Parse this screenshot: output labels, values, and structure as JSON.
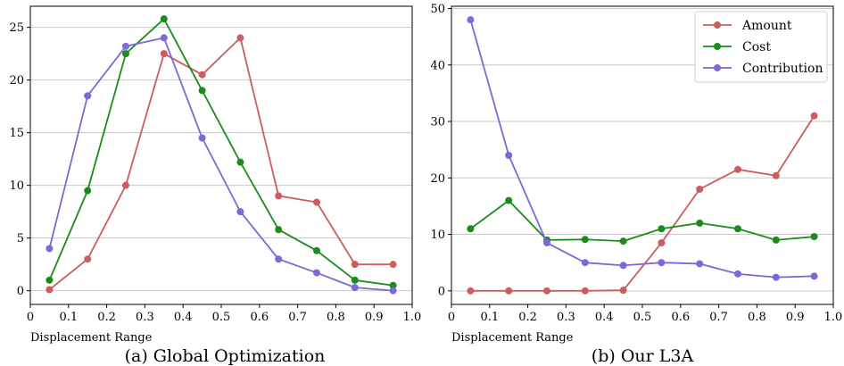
{
  "chart_data": [
    {
      "type": "line",
      "title": "",
      "caption": "(a) Global Optimization",
      "xlabel": "Displacement Range",
      "ylabel": "",
      "xlim": [
        0.0,
        1.0
      ],
      "ylim": [
        -1.3,
        27.0
      ],
      "xticks": [
        "0",
        "0.1",
        "0.2",
        "0.3",
        "0.4",
        "0.5",
        "0.6",
        "0.7",
        "0.8",
        "0.9",
        "1.0"
      ],
      "yticks": [
        0,
        5,
        10,
        15,
        20,
        25
      ],
      "grid": "horizontal",
      "x": [
        0.05,
        0.15,
        0.25,
        0.35,
        0.45,
        0.55,
        0.65,
        0.75,
        0.85,
        0.95
      ],
      "series": [
        {
          "name": "Amount",
          "color": "#cd5c5c",
          "values": [
            0.1,
            3.0,
            10.0,
            22.5,
            20.5,
            24.0,
            9.0,
            8.4,
            2.5,
            2.5
          ]
        },
        {
          "name": "Cost",
          "color": "#1a8c1a",
          "values": [
            1.0,
            9.5,
            22.5,
            25.8,
            19.0,
            12.2,
            5.8,
            3.8,
            1.0,
            0.5
          ]
        },
        {
          "name": "Contribution",
          "color": "#7b68d9",
          "values": [
            4.0,
            18.5,
            23.2,
            24.0,
            14.5,
            7.5,
            3.0,
            1.7,
            0.3,
            0.0
          ]
        }
      ]
    },
    {
      "type": "line",
      "title": "",
      "caption": "(b) Our L3A",
      "xlabel": "Displacement Range",
      "ylabel": "",
      "xlim": [
        0.0,
        1.0
      ],
      "ylim": [
        -2.4,
        50.4
      ],
      "xticks": [
        "0",
        "0.1",
        "0.2",
        "0.3",
        "0.4",
        "0.5",
        "0.6",
        "0.7",
        "0.8",
        "0.9",
        "1.0"
      ],
      "yticks": [
        0,
        10,
        20,
        30,
        40,
        50
      ],
      "grid": "horizontal",
      "legend": "top-right",
      "x": [
        0.05,
        0.15,
        0.25,
        0.35,
        0.45,
        0.55,
        0.65,
        0.75,
        0.85,
        0.95
      ],
      "series": [
        {
          "name": "Amount",
          "color": "#cd5c5c",
          "values": [
            0.0,
            0.0,
            0.0,
            0.0,
            0.1,
            8.5,
            18.0,
            21.5,
            20.4,
            31.0
          ]
        },
        {
          "name": "Cost",
          "color": "#1a8c1a",
          "values": [
            11.0,
            16.0,
            9.0,
            9.1,
            8.8,
            11.0,
            12.0,
            11.0,
            9.0,
            9.6
          ]
        },
        {
          "name": "Contribution",
          "color": "#7b68d9",
          "values": [
            48.0,
            24.0,
            8.5,
            5.0,
            4.5,
            5.0,
            4.8,
            3.0,
            2.4,
            2.6
          ]
        }
      ]
    }
  ]
}
